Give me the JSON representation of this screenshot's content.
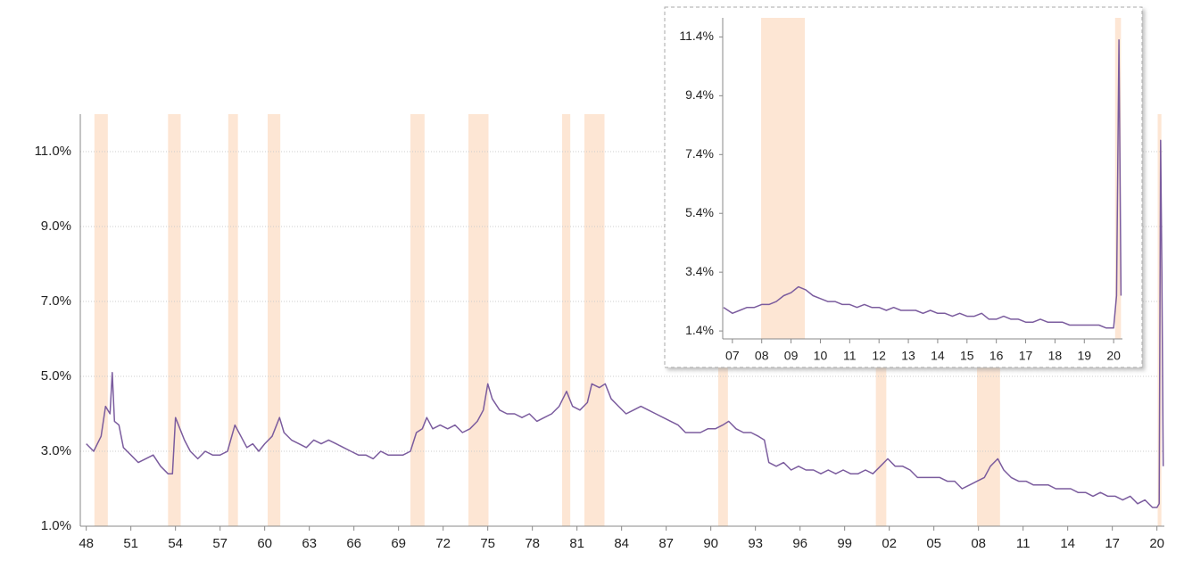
{
  "chart_data": [
    {
      "type": "line",
      "color": "#7b5c9e",
      "recession_color": "#fde6d4",
      "grid": true,
      "xlim": [
        1947.6,
        2020.5
      ],
      "ylim": [
        1.0,
        12.0
      ],
      "xticks": [
        {
          "value": 1948,
          "label": "48"
        },
        {
          "value": 1951,
          "label": "51"
        },
        {
          "value": 1954,
          "label": "54"
        },
        {
          "value": 1957,
          "label": "57"
        },
        {
          "value": 1960,
          "label": "60"
        },
        {
          "value": 1963,
          "label": "63"
        },
        {
          "value": 1966,
          "label": "66"
        },
        {
          "value": 1969,
          "label": "69"
        },
        {
          "value": 1972,
          "label": "72"
        },
        {
          "value": 1975,
          "label": "75"
        },
        {
          "value": 1978,
          "label": "78"
        },
        {
          "value": 1981,
          "label": "81"
        },
        {
          "value": 1984,
          "label": "84"
        },
        {
          "value": 1987,
          "label": "87"
        },
        {
          "value": 1990,
          "label": "90"
        },
        {
          "value": 1993,
          "label": "93"
        },
        {
          "value": 1996,
          "label": "96"
        },
        {
          "value": 1999,
          "label": "99"
        },
        {
          "value": 2002,
          "label": "02"
        },
        {
          "value": 2005,
          "label": "05"
        },
        {
          "value": 2008,
          "label": "08"
        },
        {
          "value": 2011,
          "label": "11"
        },
        {
          "value": 2014,
          "label": "14"
        },
        {
          "value": 2017,
          "label": "17"
        },
        {
          "value": 2020,
          "label": "20"
        }
      ],
      "yticks": [
        {
          "value": 1,
          "label": "1.0%"
        },
        {
          "value": 3,
          "label": "3.0%"
        },
        {
          "value": 5,
          "label": "5.0%"
        },
        {
          "value": 7,
          "label": "7.0%"
        },
        {
          "value": 9,
          "label": "9.0%"
        },
        {
          "value": 11,
          "label": "11.0%"
        }
      ],
      "recessions": [
        [
          1948.55,
          1949.45
        ],
        [
          1953.5,
          1954.35
        ],
        [
          1957.55,
          1958.2
        ],
        [
          1960.2,
          1961.05
        ],
        [
          1969.8,
          1970.75
        ],
        [
          1973.7,
          1975.05
        ],
        [
          1980.0,
          1980.55
        ],
        [
          1981.5,
          1982.85
        ],
        [
          1990.5,
          1991.15
        ],
        [
          2001.1,
          2001.8
        ],
        [
          2007.9,
          2009.45
        ],
        [
          2020.05,
          2020.3
        ]
      ],
      "x": [
        1948.0,
        1948.5,
        1949.0,
        1949.3,
        1949.6,
        1949.75,
        1949.9,
        1950.2,
        1950.5,
        1951.0,
        1951.5,
        1952.0,
        1952.5,
        1953.0,
        1953.5,
        1953.8,
        1954.0,
        1954.3,
        1954.6,
        1955.0,
        1955.5,
        1956.0,
        1956.5,
        1957.0,
        1957.5,
        1958.0,
        1958.4,
        1958.8,
        1959.2,
        1959.6,
        1960.0,
        1960.5,
        1961.0,
        1961.3,
        1961.8,
        1962.3,
        1962.8,
        1963.3,
        1963.8,
        1964.3,
        1964.8,
        1965.3,
        1965.8,
        1966.3,
        1966.8,
        1967.3,
        1967.8,
        1968.3,
        1968.8,
        1969.3,
        1969.8,
        1970.2,
        1970.6,
        1970.9,
        1971.3,
        1971.8,
        1972.3,
        1972.8,
        1973.3,
        1973.8,
        1974.3,
        1974.7,
        1975.0,
        1975.3,
        1975.8,
        1976.3,
        1976.8,
        1977.3,
        1977.8,
        1978.3,
        1978.8,
        1979.3,
        1979.8,
        1980.3,
        1980.7,
        1981.2,
        1981.7,
        1982.0,
        1982.5,
        1982.9,
        1983.3,
        1983.8,
        1984.3,
        1984.8,
        1985.3,
        1985.8,
        1986.3,
        1986.8,
        1987.3,
        1987.8,
        1988.3,
        1988.8,
        1989.3,
        1989.8,
        1990.3,
        1990.8,
        1991.2,
        1991.7,
        1992.2,
        1992.7,
        1993.2,
        1993.6,
        1993.9,
        1994.4,
        1994.9,
        1995.4,
        1995.9,
        1996.4,
        1996.9,
        1997.4,
        1997.9,
        1998.4,
        1998.9,
        1999.4,
        1999.9,
        2000.4,
        2000.9,
        2001.4,
        2001.9,
        2002.4,
        2002.9,
        2003.4,
        2003.9,
        2004.4,
        2004.9,
        2005.4,
        2005.9,
        2006.4,
        2006.9,
        2007.4,
        2007.9,
        2008.4,
        2008.8,
        2009.3,
        2009.7,
        2010.2,
        2010.7,
        2011.2,
        2011.7,
        2012.2,
        2012.7,
        2013.2,
        2013.7,
        2014.2,
        2014.7,
        2015.2,
        2015.7,
        2016.2,
        2016.7,
        2017.2,
        2017.7,
        2018.2,
        2018.7,
        2019.2,
        2019.7,
        2020.0,
        2020.15,
        2020.25,
        2020.33,
        2020.42
      ],
      "values": [
        3.2,
        3.0,
        3.4,
        4.2,
        4.0,
        5.1,
        3.8,
        3.7,
        3.1,
        2.9,
        2.7,
        2.8,
        2.9,
        2.6,
        2.4,
        2.4,
        3.9,
        3.6,
        3.3,
        3.0,
        2.8,
        3.0,
        2.9,
        2.9,
        3.0,
        3.7,
        3.4,
        3.1,
        3.2,
        3.0,
        3.2,
        3.4,
        3.9,
        3.5,
        3.3,
        3.2,
        3.1,
        3.3,
        3.2,
        3.3,
        3.2,
        3.1,
        3.0,
        2.9,
        2.9,
        2.8,
        3.0,
        2.9,
        2.9,
        2.9,
        3.0,
        3.5,
        3.6,
        3.9,
        3.6,
        3.7,
        3.6,
        3.7,
        3.5,
        3.6,
        3.8,
        4.1,
        4.8,
        4.4,
        4.1,
        4.0,
        4.0,
        3.9,
        4.0,
        3.8,
        3.9,
        4.0,
        4.2,
        4.6,
        4.2,
        4.1,
        4.3,
        4.8,
        4.7,
        4.8,
        4.4,
        4.2,
        4.0,
        4.1,
        4.2,
        4.1,
        4.0,
        3.9,
        3.8,
        3.7,
        3.5,
        3.5,
        3.5,
        3.6,
        3.6,
        3.7,
        3.8,
        3.6,
        3.5,
        3.5,
        3.4,
        3.3,
        2.7,
        2.6,
        2.7,
        2.5,
        2.6,
        2.5,
        2.5,
        2.4,
        2.5,
        2.4,
        2.5,
        2.4,
        2.4,
        2.5,
        2.4,
        2.6,
        2.8,
        2.6,
        2.6,
        2.5,
        2.3,
        2.3,
        2.3,
        2.3,
        2.2,
        2.2,
        2.0,
        2.1,
        2.2,
        2.3,
        2.6,
        2.8,
        2.5,
        2.3,
        2.2,
        2.2,
        2.1,
        2.1,
        2.1,
        2.0,
        2.0,
        2.0,
        1.9,
        1.9,
        1.8,
        1.9,
        1.8,
        1.8,
        1.7,
        1.8,
        1.6,
        1.7,
        1.5,
        1.5,
        1.6,
        11.3,
        7.8,
        2.6
      ]
    },
    {
      "type": "line",
      "color": "#7b5c9e",
      "recession_color": "#fde6d4",
      "grid": false,
      "xlim": [
        2006.67,
        2020.3
      ],
      "ylim": [
        1.13,
        12.05
      ],
      "xticks": [
        {
          "value": 2007,
          "label": "07"
        },
        {
          "value": 2008,
          "label": "08"
        },
        {
          "value": 2009,
          "label": "09"
        },
        {
          "value": 2010,
          "label": "10"
        },
        {
          "value": 2011,
          "label": "11"
        },
        {
          "value": 2012,
          "label": "12"
        },
        {
          "value": 2013,
          "label": "13"
        },
        {
          "value": 2014,
          "label": "14"
        },
        {
          "value": 2015,
          "label": "15"
        },
        {
          "value": 2016,
          "label": "16"
        },
        {
          "value": 2017,
          "label": "17"
        },
        {
          "value": 2018,
          "label": "18"
        },
        {
          "value": 2019,
          "label": "19"
        },
        {
          "value": 2020,
          "label": "20"
        }
      ],
      "yticks": [
        {
          "value": 1.4,
          "label": "1.4%"
        },
        {
          "value": 3.4,
          "label": "3.4%"
        },
        {
          "value": 5.4,
          "label": "5.4%"
        },
        {
          "value": 7.4,
          "label": "7.4%"
        },
        {
          "value": 9.4,
          "label": "9.4%"
        },
        {
          "value": 11.4,
          "label": "11.4%"
        }
      ],
      "recessions": [
        [
          2007.98,
          2009.47
        ],
        [
          2020.05,
          2020.25
        ]
      ],
      "x": [
        2006.7,
        2007.0,
        2007.25,
        2007.5,
        2007.75,
        2008.0,
        2008.25,
        2008.5,
        2008.75,
        2009.0,
        2009.25,
        2009.5,
        2009.75,
        2010.0,
        2010.25,
        2010.5,
        2010.75,
        2011.0,
        2011.25,
        2011.5,
        2011.75,
        2012.0,
        2012.25,
        2012.5,
        2012.75,
        2013.0,
        2013.25,
        2013.5,
        2013.75,
        2014.0,
        2014.25,
        2014.5,
        2014.75,
        2015.0,
        2015.25,
        2015.5,
        2015.75,
        2016.0,
        2016.25,
        2016.5,
        2016.75,
        2017.0,
        2017.25,
        2017.5,
        2017.75,
        2018.0,
        2018.25,
        2018.5,
        2018.75,
        2019.0,
        2019.25,
        2019.5,
        2019.75,
        2020.0,
        2020.1,
        2020.18,
        2020.25
      ],
      "values": [
        2.2,
        2.0,
        2.1,
        2.2,
        2.2,
        2.3,
        2.3,
        2.4,
        2.6,
        2.7,
        2.9,
        2.8,
        2.6,
        2.5,
        2.4,
        2.4,
        2.3,
        2.3,
        2.2,
        2.3,
        2.2,
        2.2,
        2.1,
        2.2,
        2.1,
        2.1,
        2.1,
        2.0,
        2.1,
        2.0,
        2.0,
        1.9,
        2.0,
        1.9,
        1.9,
        2.0,
        1.8,
        1.8,
        1.9,
        1.8,
        1.8,
        1.7,
        1.7,
        1.8,
        1.7,
        1.7,
        1.7,
        1.6,
        1.6,
        1.6,
        1.6,
        1.6,
        1.5,
        1.5,
        2.6,
        11.3,
        2.6
      ]
    }
  ]
}
